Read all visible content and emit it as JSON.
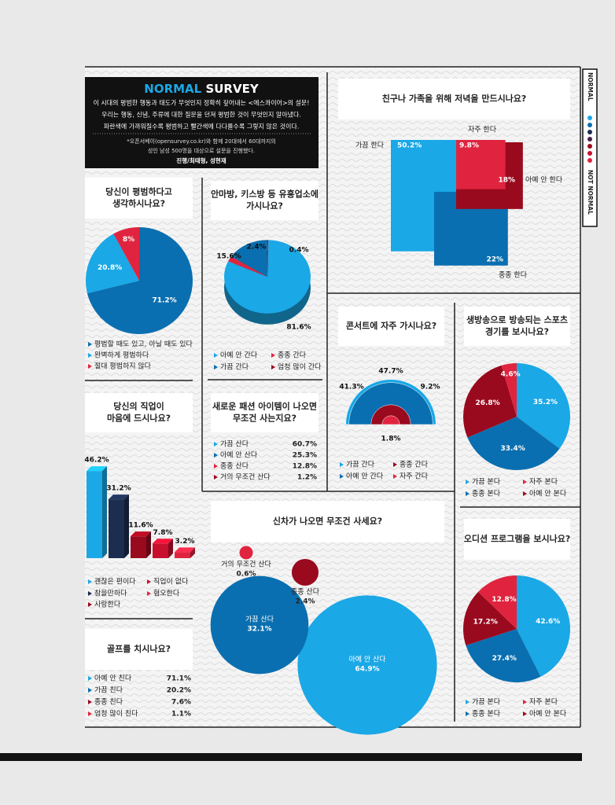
{
  "header": {
    "title_normal": "NORMAL",
    "title_survey": "SURVEY",
    "lines": [
      "이 시대의 평범한 행동과 태도가 무엇인지 정확히 짚어내는 <에스콰이어>의 설문!",
      "우리는 행동, 신념, 주류에 대한 질문을 던져 평범한 것이 무엇인지 알아냈다.",
      "파란색에 가까워질수록 평범하고 빨간색에 다다를수록 그렇지 않은 것이다."
    ],
    "note": [
      "*오픈서베이(opensurvey.co.kr)와 함께 20대에서 60대까지의",
      "성인 남성 500명을 대상으로 설문을 진행했다."
    ],
    "credit": "진행/최태형, 성현재"
  },
  "side": {
    "top": "NORMAL",
    "bottom": "NOT NORMAL",
    "dot_colors": [
      "#1aa8e6",
      "#0a6fb0",
      "#1c2d4f",
      "#4a1f4f",
      "#9a0a1e",
      "#c8102e",
      "#e0243f"
    ]
  },
  "chart_data": [
    {
      "type": "pie",
      "title": [
        "당신이 평범하다고",
        "생각하시나요?"
      ],
      "categories": [
        "평범할 때도 있고, 아닐 때도 있다",
        "완벽하게 평범하다",
        "절대 평범하지 않다"
      ],
      "values": [
        71.2,
        20.8,
        8
      ],
      "value_labels": [
        "71.2%",
        "20.8%",
        "8%"
      ],
      "colors": [
        "#0a6fb0",
        "#1aa8e6",
        "#e0243f"
      ]
    },
    {
      "type": "pie3d",
      "title": [
        "안마방, 키스방 등 유흥업소에",
        "가시나요?"
      ],
      "categories": [
        "아예 안 간다",
        "종종 간다",
        "가끔 간다",
        "엄청 많이 간다"
      ],
      "values": [
        81.6,
        2.4,
        15.6,
        0.4
      ],
      "value_labels": [
        "81.6%",
        "2.4%",
        "15.6%",
        "0.4%"
      ],
      "colors": [
        "#1aa8e6",
        "#e0243f",
        "#0a6fb0",
        "#9a0a1e"
      ]
    },
    {
      "type": "squares",
      "title": [
        "친구나 가족을 위해 저녁을 만드시나요?"
      ],
      "categories": [
        "가끔 한다",
        "자주 한다",
        "아예 안 한다",
        "종종 한다"
      ],
      "values": [
        50.2,
        9.8,
        18,
        22
      ],
      "value_labels": [
        "50.2%",
        "9.8%",
        "18%",
        "22%"
      ],
      "colors": [
        "#1aa8e6",
        "#e0243f",
        "#9a0a1e",
        "#0a6fb0"
      ]
    },
    {
      "type": "bar3d",
      "title": [
        "당신의 직업이",
        "마음에 드시나요?"
      ],
      "categories": [
        "괜찮은 편이다",
        "참을만하다",
        "사랑한다",
        "직업이 없다",
        "혐오한다"
      ],
      "values": [
        46.2,
        31.2,
        11.6,
        7.8,
        3.2
      ],
      "value_labels": [
        "46.2%",
        "31.2%",
        "11.6%",
        "7.8%",
        "3.2%"
      ],
      "colors": [
        "#1aa8e6",
        "#1c2d4f",
        "#9a0a1e",
        "#c8102e",
        "#e0243f"
      ]
    },
    {
      "type": "table",
      "title": [
        "새로운 패션 아이템이 나오면",
        "무조건 사는지요?"
      ],
      "categories": [
        "가끔 산다",
        "아예 안 산다",
        "종종 산다",
        "거의 무조건 산다"
      ],
      "values": [
        60.7,
        25.3,
        12.8,
        1.2
      ],
      "value_labels": [
        "60.7%",
        "25.3%",
        "12.8%",
        "1.2%"
      ],
      "colors": [
        "#1aa8e6",
        "#0a6fb0",
        "#e0243f",
        "#9a0a1e"
      ]
    },
    {
      "type": "semicircle",
      "title": [
        "콘서트에 자주 가시나요?"
      ],
      "categories": [
        "가끔 간다",
        "아예 안 간다",
        "종종 간다",
        "자주 간다"
      ],
      "values": [
        47.7,
        41.3,
        9.2,
        1.8
      ],
      "value_labels": [
        "47.7%",
        "41.3%",
        "9.2%",
        "1.8%"
      ],
      "colors": [
        "#1aa8e6",
        "#0a6fb0",
        "#9a0a1e",
        "#e0243f"
      ]
    },
    {
      "type": "pie",
      "title": [
        "생방송으로 방송되는 스포츠",
        "경기를 보시나요?"
      ],
      "categories": [
        "가끔 본다",
        "종종 본다",
        "아예 안 본다",
        "자주 본다"
      ],
      "values": [
        35.2,
        33.4,
        26.8,
        4.6
      ],
      "value_labels": [
        "35.2%",
        "33.4%",
        "26.8%",
        "4.6%"
      ],
      "colors": [
        "#1aa8e6",
        "#0a6fb0",
        "#9a0a1e",
        "#e0243f"
      ]
    },
    {
      "type": "bubble",
      "title": [
        "신차가 나오면 무조건 사세요?"
      ],
      "categories": [
        "아예 안 산다",
        "가끔 산다",
        "종종 산다",
        "거의 무조건 산다"
      ],
      "values": [
        64.9,
        32.1,
        2.4,
        0.6
      ],
      "value_labels": [
        "64.9%",
        "32.1%",
        "2.4%",
        "0.6%"
      ],
      "colors": [
        "#1aa8e6",
        "#0a6fb0",
        "#9a0a1e",
        "#e0243f"
      ]
    },
    {
      "type": "table",
      "title": [
        "골프를 치시나요?"
      ],
      "categories": [
        "아예 안 친다",
        "가끔 친다",
        "종종 친다",
        "엄청 많이 친다"
      ],
      "values": [
        71.1,
        20.2,
        7.6,
        1.1
      ],
      "value_labels": [
        "71.1%",
        "20.2%",
        "7.6%",
        "1.1%"
      ],
      "colors": [
        "#1aa8e6",
        "#0a6fb0",
        "#9a0a1e",
        "#e0243f"
      ]
    },
    {
      "type": "pie",
      "title": [
        "오디션 프로그램을 보시나요?"
      ],
      "categories": [
        "가끔 본다",
        "종종 본다",
        "아예 안 본다",
        "자주 본다"
      ],
      "values": [
        42.6,
        27.4,
        17.2,
        12.8
      ],
      "value_labels": [
        "42.6%",
        "27.4%",
        "17.2%",
        "12.8%"
      ],
      "colors": [
        "#1aa8e6",
        "#0a6fb0",
        "#9a0a1e",
        "#e0243f"
      ]
    }
  ]
}
